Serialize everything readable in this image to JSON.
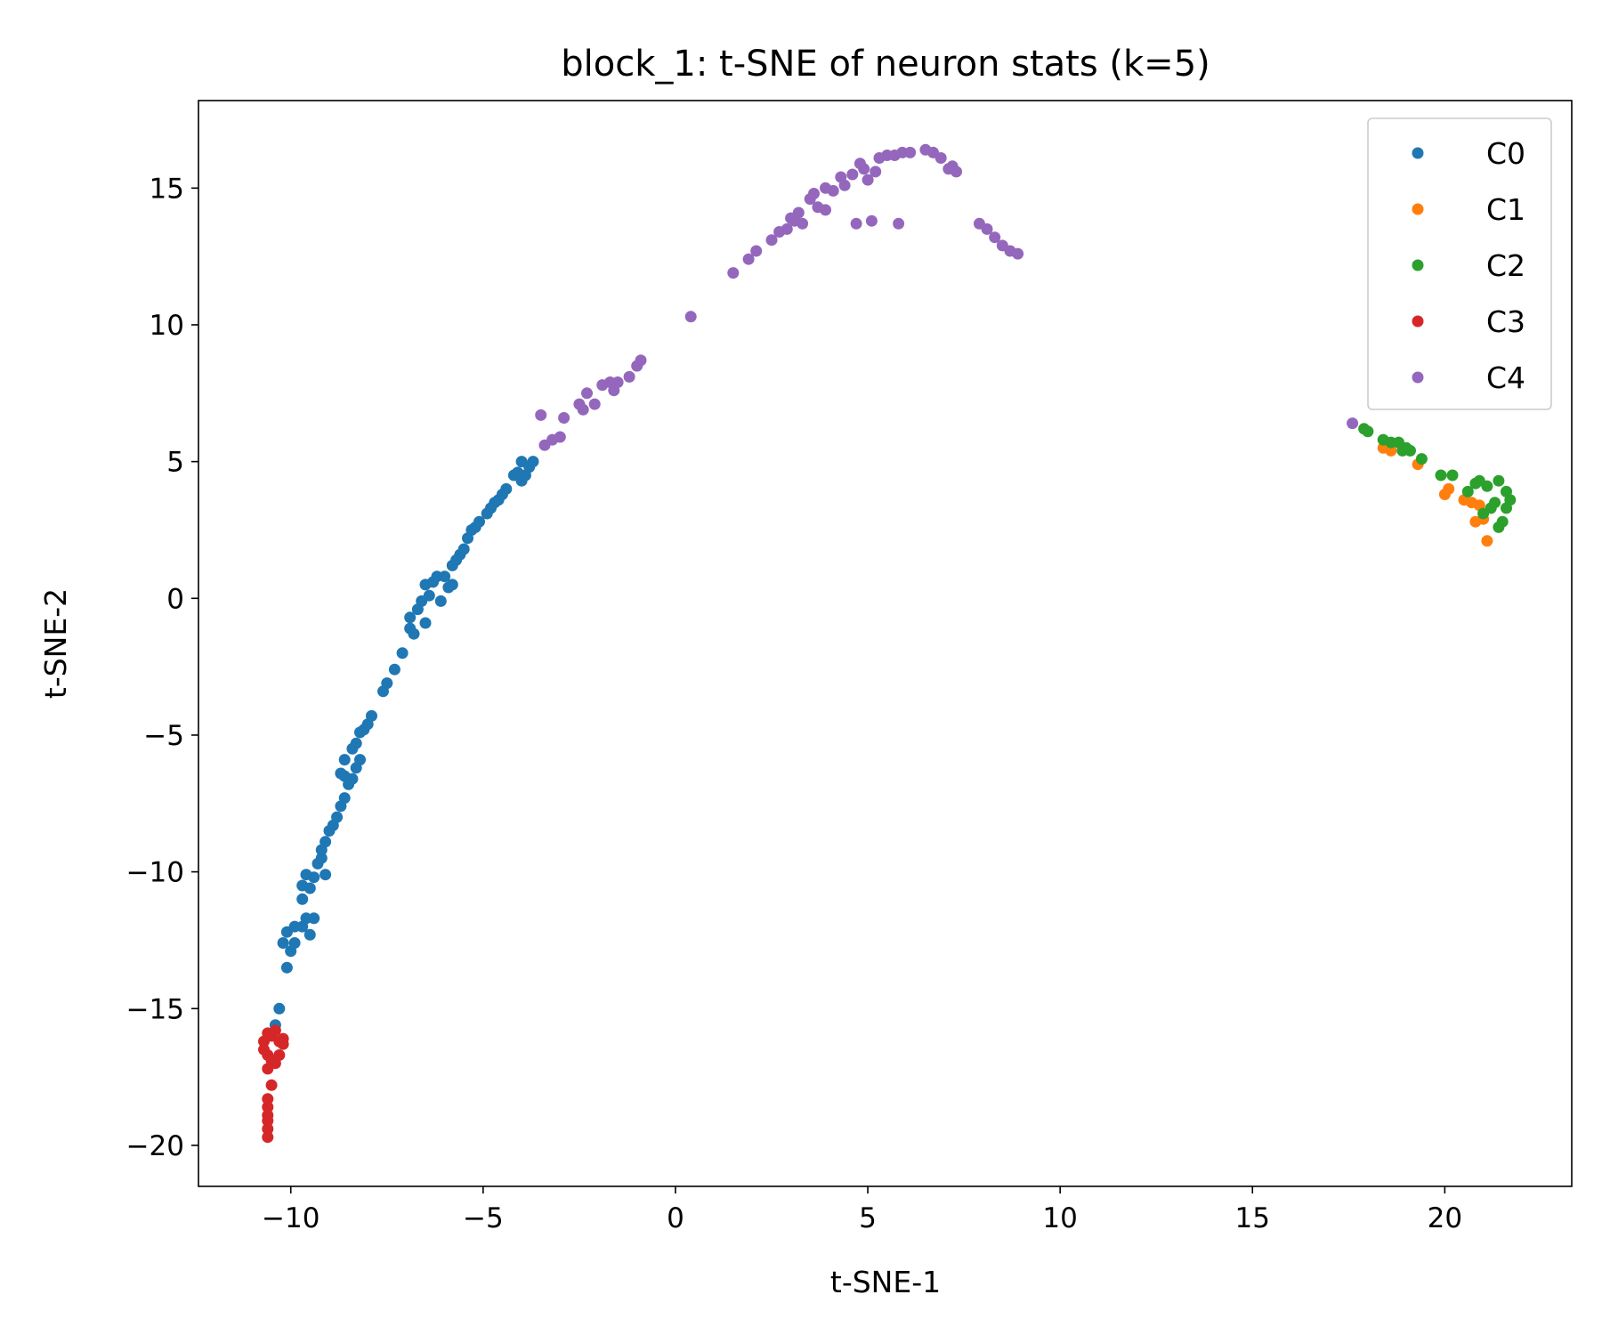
{
  "chart_data": {
    "type": "scatter",
    "title": "block_1: t-SNE of neuron stats (k=5)",
    "xlabel": "t-SNE-1",
    "ylabel": "t-SNE-2",
    "xlim": [
      -12.4,
      23.3
    ],
    "ylim": [
      -21.5,
      18.2
    ],
    "xticks": [
      -10,
      -5,
      0,
      5,
      10,
      15,
      20
    ],
    "yticks": [
      -20,
      -15,
      -10,
      -5,
      0,
      5,
      10,
      15
    ],
    "xtick_labels": [
      "−10",
      "−5",
      "0",
      "5",
      "10",
      "15",
      "20"
    ],
    "ytick_labels": [
      "−20",
      "−15",
      "−10",
      "−5",
      "0",
      "5",
      "10",
      "15"
    ],
    "grid": false,
    "legend_position": "top-right",
    "series": [
      {
        "name": "C0",
        "color": "#1f77b4",
        "points": [
          [
            -10.3,
            -15.0
          ],
          [
            -10.4,
            -15.6
          ],
          [
            -10.1,
            -13.5
          ],
          [
            -10.2,
            -12.6
          ],
          [
            -10.0,
            -12.9
          ],
          [
            -9.9,
            -12.6
          ],
          [
            -10.1,
            -12.2
          ],
          [
            -9.9,
            -12.0
          ],
          [
            -9.7,
            -12.0
          ],
          [
            -9.6,
            -11.7
          ],
          [
            -9.5,
            -12.3
          ],
          [
            -9.4,
            -11.7
          ],
          [
            -9.7,
            -11.0
          ],
          [
            -9.7,
            -10.5
          ],
          [
            -9.6,
            -10.1
          ],
          [
            -9.5,
            -10.6
          ],
          [
            -9.4,
            -10.2
          ],
          [
            -9.3,
            -9.7
          ],
          [
            -9.2,
            -9.5
          ],
          [
            -9.1,
            -10.1
          ],
          [
            -9.2,
            -9.2
          ],
          [
            -9.1,
            -8.9
          ],
          [
            -9.0,
            -8.5
          ],
          [
            -8.9,
            -8.3
          ],
          [
            -8.8,
            -8.0
          ],
          [
            -8.7,
            -7.6
          ],
          [
            -8.6,
            -7.3
          ],
          [
            -8.5,
            -6.8
          ],
          [
            -8.6,
            -6.5
          ],
          [
            -8.7,
            -6.4
          ],
          [
            -8.4,
            -6.6
          ],
          [
            -8.3,
            -6.2
          ],
          [
            -8.2,
            -5.9
          ],
          [
            -8.6,
            -5.9
          ],
          [
            -8.4,
            -5.5
          ],
          [
            -8.3,
            -5.3
          ],
          [
            -8.2,
            -4.9
          ],
          [
            -8.1,
            -4.8
          ],
          [
            -8.0,
            -4.6
          ],
          [
            -7.9,
            -4.3
          ],
          [
            -7.6,
            -3.4
          ],
          [
            -7.5,
            -3.1
          ],
          [
            -7.3,
            -2.6
          ],
          [
            -7.1,
            -2.0
          ],
          [
            -6.9,
            -1.1
          ],
          [
            -6.8,
            -1.3
          ],
          [
            -6.9,
            -0.7
          ],
          [
            -6.7,
            -0.4
          ],
          [
            -6.5,
            -0.9
          ],
          [
            -6.6,
            -0.1
          ],
          [
            -6.4,
            0.1
          ],
          [
            -6.5,
            0.5
          ],
          [
            -6.3,
            0.6
          ],
          [
            -6.2,
            0.8
          ],
          [
            -6.0,
            0.8
          ],
          [
            -6.1,
            -0.1
          ],
          [
            -5.9,
            0.4
          ],
          [
            -5.8,
            0.5
          ],
          [
            -5.8,
            1.2
          ],
          [
            -5.7,
            1.4
          ],
          [
            -5.6,
            1.6
          ],
          [
            -5.5,
            1.8
          ],
          [
            -5.4,
            2.2
          ],
          [
            -5.3,
            2.5
          ],
          [
            -5.2,
            2.6
          ],
          [
            -5.1,
            2.8
          ],
          [
            -4.9,
            3.1
          ],
          [
            -4.8,
            3.3
          ],
          [
            -4.7,
            3.5
          ],
          [
            -4.6,
            3.6
          ],
          [
            -4.5,
            3.8
          ],
          [
            -4.4,
            4.0
          ],
          [
            -4.2,
            4.5
          ],
          [
            -4.1,
            4.6
          ],
          [
            -4.0,
            4.3
          ],
          [
            -3.9,
            4.5
          ],
          [
            -4.0,
            5.0
          ],
          [
            -3.8,
            4.8
          ],
          [
            -3.7,
            5.0
          ]
        ]
      },
      {
        "name": "C1",
        "color": "#ff7f0e",
        "points": [
          [
            18.4,
            5.5
          ],
          [
            18.6,
            5.4
          ],
          [
            19.3,
            4.9
          ],
          [
            20.0,
            3.8
          ],
          [
            20.1,
            4.0
          ],
          [
            20.5,
            3.6
          ],
          [
            20.8,
            2.8
          ],
          [
            20.9,
            3.4
          ],
          [
            21.0,
            2.9
          ],
          [
            21.1,
            2.1
          ],
          [
            20.7,
            3.5
          ]
        ]
      },
      {
        "name": "C2",
        "color": "#2ca02c",
        "points": [
          [
            17.9,
            6.2
          ],
          [
            18.0,
            6.1
          ],
          [
            18.4,
            5.8
          ],
          [
            18.6,
            5.7
          ],
          [
            18.8,
            5.7
          ],
          [
            18.9,
            5.4
          ],
          [
            19.0,
            5.5
          ],
          [
            19.1,
            5.4
          ],
          [
            19.4,
            5.1
          ],
          [
            19.9,
            4.5
          ],
          [
            20.2,
            4.5
          ],
          [
            20.6,
            3.9
          ],
          [
            20.8,
            4.2
          ],
          [
            20.9,
            4.3
          ],
          [
            21.1,
            4.1
          ],
          [
            21.2,
            3.3
          ],
          [
            21.3,
            3.5
          ],
          [
            21.4,
            4.3
          ],
          [
            21.4,
            2.6
          ],
          [
            21.5,
            2.8
          ],
          [
            21.6,
            3.9
          ],
          [
            21.6,
            3.3
          ],
          [
            21.7,
            3.6
          ],
          [
            21.0,
            3.1
          ]
        ]
      },
      {
        "name": "C3",
        "color": "#d62728",
        "points": [
          [
            -10.7,
            -16.2
          ],
          [
            -10.6,
            -15.9
          ],
          [
            -10.5,
            -16.0
          ],
          [
            -10.4,
            -15.8
          ],
          [
            -10.3,
            -16.2
          ],
          [
            -10.2,
            -16.1
          ],
          [
            -10.2,
            -16.3
          ],
          [
            -10.7,
            -16.5
          ],
          [
            -10.6,
            -16.7
          ],
          [
            -10.5,
            -16.9
          ],
          [
            -10.4,
            -17.0
          ],
          [
            -10.3,
            -16.7
          ],
          [
            -10.6,
            -17.2
          ],
          [
            -10.5,
            -17.8
          ],
          [
            -10.6,
            -18.3
          ],
          [
            -10.6,
            -18.6
          ],
          [
            -10.6,
            -18.9
          ],
          [
            -10.6,
            -19.1
          ],
          [
            -10.6,
            -19.4
          ],
          [
            -10.6,
            -19.7
          ]
        ]
      },
      {
        "name": "C4",
        "color": "#9467bd",
        "points": [
          [
            -3.5,
            6.7
          ],
          [
            -3.4,
            5.6
          ],
          [
            -3.2,
            5.8
          ],
          [
            -3.0,
            5.9
          ],
          [
            -2.9,
            6.6
          ],
          [
            -2.5,
            7.1
          ],
          [
            -2.4,
            6.9
          ],
          [
            -2.3,
            7.5
          ],
          [
            -2.1,
            7.1
          ],
          [
            -1.9,
            7.8
          ],
          [
            -1.7,
            7.9
          ],
          [
            -1.6,
            7.6
          ],
          [
            -1.5,
            7.9
          ],
          [
            -1.2,
            8.1
          ],
          [
            -1.0,
            8.5
          ],
          [
            -0.9,
            8.7
          ],
          [
            0.4,
            10.3
          ],
          [
            1.5,
            11.9
          ],
          [
            1.9,
            12.4
          ],
          [
            2.1,
            12.7
          ],
          [
            2.5,
            13.1
          ],
          [
            2.7,
            13.4
          ],
          [
            2.9,
            13.5
          ],
          [
            3.0,
            13.9
          ],
          [
            3.1,
            13.8
          ],
          [
            3.2,
            14.1
          ],
          [
            3.3,
            13.7
          ],
          [
            3.5,
            14.6
          ],
          [
            3.6,
            14.8
          ],
          [
            3.7,
            14.3
          ],
          [
            3.9,
            14.2
          ],
          [
            3.9,
            15.0
          ],
          [
            4.1,
            14.9
          ],
          [
            4.3,
            15.4
          ],
          [
            4.4,
            15.1
          ],
          [
            4.6,
            15.5
          ],
          [
            4.7,
            13.7
          ],
          [
            4.8,
            15.9
          ],
          [
            4.9,
            15.7
          ],
          [
            5.0,
            15.3
          ],
          [
            5.1,
            13.8
          ],
          [
            5.2,
            15.6
          ],
          [
            5.3,
            16.1
          ],
          [
            5.5,
            16.2
          ],
          [
            5.7,
            16.2
          ],
          [
            5.8,
            13.7
          ],
          [
            5.9,
            16.3
          ],
          [
            6.1,
            16.3
          ],
          [
            6.5,
            16.4
          ],
          [
            6.7,
            16.3
          ],
          [
            6.9,
            16.1
          ],
          [
            7.1,
            15.7
          ],
          [
            7.3,
            15.6
          ],
          [
            7.2,
            15.8
          ],
          [
            7.9,
            13.7
          ],
          [
            8.1,
            13.5
          ],
          [
            8.3,
            13.2
          ],
          [
            8.5,
            12.9
          ],
          [
            8.7,
            12.7
          ],
          [
            8.9,
            12.6
          ],
          [
            17.6,
            6.4
          ]
        ]
      }
    ]
  }
}
